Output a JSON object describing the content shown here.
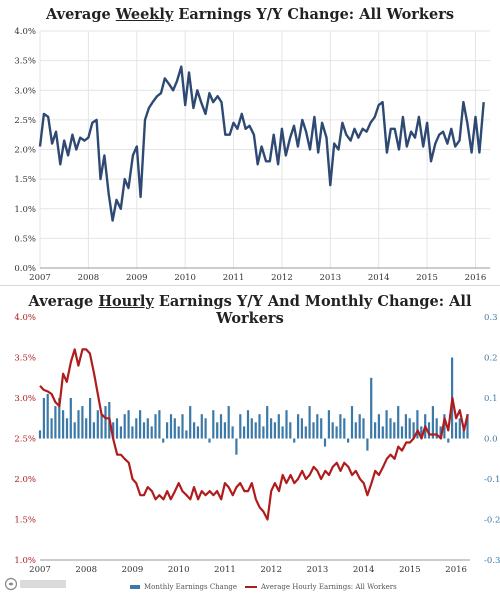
{
  "chart_data": [
    {
      "type": "line",
      "title_pre": "Average ",
      "title_u": "Weekly",
      "title_post": " Earnings Y/Y Change: All Workers",
      "xlabel": "",
      "ylabel": "",
      "x_ticks": [
        "2007",
        "2008",
        "2009",
        "2010",
        "2011",
        "2012",
        "2013",
        "2014",
        "2015",
        "2016"
      ],
      "y_ticks": [
        "0.0%",
        "0.5%",
        "1.0%",
        "1.5%",
        "2.0%",
        "2.5%",
        "3.0%",
        "3.5%",
        "4.0%"
      ],
      "ylim": [
        0,
        4.0
      ],
      "grid": true,
      "series": [
        {
          "color": "#2e4a73",
          "points": [
            [
              2007.0,
              2.05
            ],
            [
              2007.08,
              2.6
            ],
            [
              2007.17,
              2.55
            ],
            [
              2007.25,
              2.1
            ],
            [
              2007.33,
              2.3
            ],
            [
              2007.42,
              1.75
            ],
            [
              2007.5,
              2.15
            ],
            [
              2007.58,
              1.9
            ],
            [
              2007.67,
              2.25
            ],
            [
              2007.75,
              2.0
            ],
            [
              2007.83,
              2.2
            ],
            [
              2007.92,
              2.15
            ],
            [
              2008.0,
              2.2
            ],
            [
              2008.08,
              2.45
            ],
            [
              2008.17,
              2.5
            ],
            [
              2008.25,
              1.5
            ],
            [
              2008.33,
              1.9
            ],
            [
              2008.42,
              1.25
            ],
            [
              2008.5,
              0.8
            ],
            [
              2008.58,
              1.15
            ],
            [
              2008.67,
              1.0
            ],
            [
              2008.75,
              1.5
            ],
            [
              2008.83,
              1.35
            ],
            [
              2008.92,
              1.9
            ],
            [
              2009.0,
              2.05
            ],
            [
              2009.08,
              1.2
            ],
            [
              2009.17,
              2.5
            ],
            [
              2009.25,
              2.7
            ],
            [
              2009.33,
              2.8
            ],
            [
              2009.42,
              2.9
            ],
            [
              2009.5,
              2.95
            ],
            [
              2009.58,
              3.2
            ],
            [
              2009.67,
              3.1
            ],
            [
              2009.75,
              3.0
            ],
            [
              2009.83,
              3.15
            ],
            [
              2009.92,
              3.4
            ],
            [
              2010.0,
              2.75
            ],
            [
              2010.08,
              3.3
            ],
            [
              2010.17,
              2.7
            ],
            [
              2010.25,
              3.0
            ],
            [
              2010.33,
              2.8
            ],
            [
              2010.42,
              2.6
            ],
            [
              2010.5,
              2.95
            ],
            [
              2010.58,
              2.8
            ],
            [
              2010.67,
              2.9
            ],
            [
              2010.75,
              2.8
            ],
            [
              2010.83,
              2.25
            ],
            [
              2010.92,
              2.25
            ],
            [
              2011.0,
              2.45
            ],
            [
              2011.08,
              2.35
            ],
            [
              2011.17,
              2.6
            ],
            [
              2011.25,
              2.35
            ],
            [
              2011.33,
              2.4
            ],
            [
              2011.42,
              2.25
            ],
            [
              2011.5,
              1.75
            ],
            [
              2011.58,
              2.05
            ],
            [
              2011.67,
              1.8
            ],
            [
              2011.75,
              1.8
            ],
            [
              2011.83,
              2.25
            ],
            [
              2011.92,
              1.75
            ],
            [
              2012.0,
              2.35
            ],
            [
              2012.08,
              1.9
            ],
            [
              2012.17,
              2.2
            ],
            [
              2012.25,
              2.4
            ],
            [
              2012.33,
              2.05
            ],
            [
              2012.42,
              2.5
            ],
            [
              2012.5,
              2.3
            ],
            [
              2012.58,
              2.0
            ],
            [
              2012.67,
              2.55
            ],
            [
              2012.75,
              1.95
            ],
            [
              2012.83,
              2.45
            ],
            [
              2012.92,
              2.2
            ],
            [
              2013.0,
              1.4
            ],
            [
              2013.08,
              2.1
            ],
            [
              2013.17,
              2.0
            ],
            [
              2013.25,
              2.45
            ],
            [
              2013.33,
              2.25
            ],
            [
              2013.42,
              2.15
            ],
            [
              2013.5,
              2.35
            ],
            [
              2013.58,
              2.2
            ],
            [
              2013.67,
              2.35
            ],
            [
              2013.75,
              2.3
            ],
            [
              2013.83,
              2.45
            ],
            [
              2013.92,
              2.55
            ],
            [
              2014.0,
              2.75
            ],
            [
              2014.08,
              2.8
            ],
            [
              2014.17,
              1.95
            ],
            [
              2014.25,
              2.35
            ],
            [
              2014.33,
              2.35
            ],
            [
              2014.42,
              2.0
            ],
            [
              2014.5,
              2.55
            ],
            [
              2014.58,
              2.05
            ],
            [
              2014.67,
              2.3
            ],
            [
              2014.75,
              2.2
            ],
            [
              2014.83,
              2.55
            ],
            [
              2014.92,
              2.05
            ],
            [
              2015.0,
              2.45
            ],
            [
              2015.08,
              1.8
            ],
            [
              2015.17,
              2.1
            ],
            [
              2015.25,
              2.25
            ],
            [
              2015.33,
              2.3
            ],
            [
              2015.42,
              2.1
            ],
            [
              2015.5,
              2.35
            ],
            [
              2015.58,
              2.05
            ],
            [
              2015.67,
              2.15
            ],
            [
              2015.75,
              2.8
            ],
            [
              2015.83,
              2.45
            ],
            [
              2015.92,
              1.95
            ],
            [
              2016.0,
              2.55
            ],
            [
              2016.08,
              1.95
            ],
            [
              2016.17,
              2.8
            ]
          ]
        }
      ]
    },
    {
      "type": "bar+line",
      "title_pre": "Average ",
      "title_u": "Hourly",
      "title_post": " Earnings Y/Y And Monthly Change: All Workers",
      "xlabel": "",
      "ylabel": "",
      "x_ticks": [
        "2007",
        "2008",
        "2009",
        "2010",
        "2011",
        "2012",
        "2013",
        "2014",
        "2015",
        "2016"
      ],
      "y_ticks_left": [
        "1.0%",
        "1.5%",
        "2.0%",
        "2.5%",
        "3.0%",
        "3.5%",
        "4.0%"
      ],
      "y_ticks_right": [
        "-0.3",
        "-0.2",
        "-0.1",
        "0.0",
        "0.1",
        "0.2",
        "0.3"
      ],
      "ylim_left": [
        1.0,
        4.0
      ],
      "ylim_right": [
        -0.3,
        0.3
      ],
      "grid": false,
      "legend": {
        "position": "bottom",
        "bar_label": "Monthly Earnings Change",
        "line_label": "Average Hourly Earnings: All Workers"
      },
      "series": [
        {
          "name": "Monthly Earnings Change",
          "kind": "bar",
          "axis": "right",
          "color": "#3b79a8",
          "start": 2007.0,
          "step": 0.0833,
          "values": [
            0.02,
            0.1,
            0.11,
            0.05,
            0.08,
            0.1,
            0.07,
            0.05,
            0.1,
            0.04,
            0.07,
            0.08,
            0.05,
            0.1,
            0.04,
            0.07,
            0.06,
            0.08,
            0.09,
            0.04,
            0.05,
            0.03,
            0.06,
            0.07,
            0.03,
            0.05,
            0.07,
            0.04,
            0.05,
            0.03,
            0.06,
            0.07,
            -0.01,
            0.04,
            0.06,
            0.05,
            0.03,
            0.06,
            0.02,
            0.08,
            0.04,
            0.03,
            0.06,
            0.05,
            -0.01,
            0.07,
            0.04,
            0.06,
            0.04,
            0.08,
            0.03,
            -0.04,
            0.06,
            0.03,
            0.07,
            0.05,
            0.04,
            0.06,
            0.03,
            0.08,
            0.05,
            0.04,
            0.06,
            0.03,
            0.07,
            0.04,
            -0.01,
            0.06,
            0.05,
            0.03,
            0.08,
            0.04,
            0.06,
            0.05,
            -0.02,
            0.07,
            0.04,
            0.03,
            0.06,
            0.05,
            -0.01,
            0.08,
            0.04,
            0.06,
            0.05,
            -0.03,
            0.15,
            0.04,
            0.06,
            0.03,
            0.07,
            0.05,
            0.04,
            0.08,
            0.03,
            0.06,
            0.05,
            0.04,
            0.07,
            0.03,
            0.06,
            0.04,
            0.08,
            0.05,
            0.03,
            0.06,
            -0.01,
            0.2,
            0.04,
            0.05,
            0.03,
            0.06
          ]
        },
        {
          "name": "Average Hourly Earnings: All Workers",
          "kind": "line",
          "axis": "left",
          "color": "#b01c1c",
          "points": [
            [
              2007.0,
              3.15
            ],
            [
              2007.08,
              3.1
            ],
            [
              2007.17,
              3.08
            ],
            [
              2007.25,
              3.05
            ],
            [
              2007.33,
              2.95
            ],
            [
              2007.42,
              2.9
            ],
            [
              2007.5,
              3.3
            ],
            [
              2007.58,
              3.2
            ],
            [
              2007.67,
              3.45
            ],
            [
              2007.75,
              3.6
            ],
            [
              2007.83,
              3.4
            ],
            [
              2007.92,
              3.6
            ],
            [
              2008.0,
              3.6
            ],
            [
              2008.08,
              3.55
            ],
            [
              2008.17,
              3.3
            ],
            [
              2008.25,
              3.05
            ],
            [
              2008.33,
              2.8
            ],
            [
              2008.42,
              2.75
            ],
            [
              2008.5,
              2.75
            ],
            [
              2008.58,
              2.5
            ],
            [
              2008.67,
              2.3
            ],
            [
              2008.75,
              2.3
            ],
            [
              2008.83,
              2.25
            ],
            [
              2008.92,
              2.2
            ],
            [
              2009.0,
              2.0
            ],
            [
              2009.08,
              1.95
            ],
            [
              2009.17,
              1.8
            ],
            [
              2009.25,
              1.8
            ],
            [
              2009.33,
              1.9
            ],
            [
              2009.42,
              1.85
            ],
            [
              2009.5,
              1.75
            ],
            [
              2009.58,
              1.8
            ],
            [
              2009.67,
              1.75
            ],
            [
              2009.75,
              1.85
            ],
            [
              2009.83,
              1.75
            ],
            [
              2009.92,
              1.85
            ],
            [
              2010.0,
              1.95
            ],
            [
              2010.08,
              1.85
            ],
            [
              2010.17,
              1.8
            ],
            [
              2010.25,
              1.75
            ],
            [
              2010.33,
              1.9
            ],
            [
              2010.42,
              1.75
            ],
            [
              2010.5,
              1.85
            ],
            [
              2010.58,
              1.8
            ],
            [
              2010.67,
              1.85
            ],
            [
              2010.75,
              1.8
            ],
            [
              2010.83,
              1.85
            ],
            [
              2010.92,
              1.75
            ],
            [
              2011.0,
              1.95
            ],
            [
              2011.08,
              1.9
            ],
            [
              2011.17,
              1.8
            ],
            [
              2011.25,
              1.9
            ],
            [
              2011.33,
              1.95
            ],
            [
              2011.42,
              1.85
            ],
            [
              2011.5,
              1.85
            ],
            [
              2011.58,
              1.95
            ],
            [
              2011.67,
              1.75
            ],
            [
              2011.75,
              1.65
            ],
            [
              2011.83,
              1.6
            ],
            [
              2011.92,
              1.5
            ],
            [
              2012.0,
              1.85
            ],
            [
              2012.08,
              1.95
            ],
            [
              2012.17,
              1.85
            ],
            [
              2012.25,
              2.05
            ],
            [
              2012.33,
              1.95
            ],
            [
              2012.42,
              2.05
            ],
            [
              2012.5,
              1.95
            ],
            [
              2012.58,
              2.0
            ],
            [
              2012.67,
              2.1
            ],
            [
              2012.75,
              2.0
            ],
            [
              2012.83,
              2.05
            ],
            [
              2012.92,
              2.15
            ],
            [
              2013.0,
              2.1
            ],
            [
              2013.08,
              2.0
            ],
            [
              2013.17,
              2.1
            ],
            [
              2013.25,
              2.05
            ],
            [
              2013.33,
              2.15
            ],
            [
              2013.42,
              2.2
            ],
            [
              2013.5,
              2.1
            ],
            [
              2013.58,
              2.2
            ],
            [
              2013.67,
              2.15
            ],
            [
              2013.75,
              2.05
            ],
            [
              2013.83,
              2.1
            ],
            [
              2013.92,
              2.0
            ],
            [
              2014.0,
              1.95
            ],
            [
              2014.08,
              1.8
            ],
            [
              2014.17,
              1.95
            ],
            [
              2014.25,
              2.1
            ],
            [
              2014.33,
              2.05
            ],
            [
              2014.42,
              2.15
            ],
            [
              2014.5,
              2.25
            ],
            [
              2014.58,
              2.3
            ],
            [
              2014.67,
              2.25
            ],
            [
              2014.75,
              2.4
            ],
            [
              2014.83,
              2.35
            ],
            [
              2014.92,
              2.45
            ],
            [
              2015.0,
              2.45
            ],
            [
              2015.08,
              2.5
            ],
            [
              2015.17,
              2.6
            ],
            [
              2015.25,
              2.5
            ],
            [
              2015.33,
              2.65
            ],
            [
              2015.42,
              2.55
            ],
            [
              2015.5,
              2.55
            ],
            [
              2015.58,
              2.55
            ],
            [
              2015.67,
              2.5
            ],
            [
              2015.75,
              2.75
            ],
            [
              2015.83,
              2.6
            ],
            [
              2015.92,
              3.0
            ],
            [
              2016.0,
              2.75
            ],
            [
              2016.08,
              2.85
            ],
            [
              2016.17,
              2.6
            ],
            [
              2016.25,
              2.8
            ]
          ]
        }
      ]
    }
  ]
}
